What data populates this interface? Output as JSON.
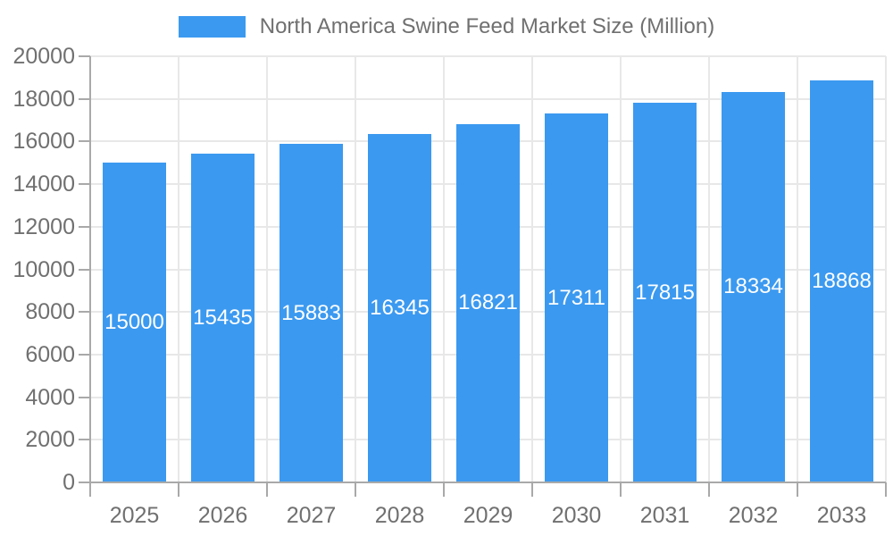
{
  "legend": {
    "label": "North America Swine Feed Market Size (Million)"
  },
  "colors": {
    "bar": "#3B99F0",
    "grid": "#e8e8e8",
    "axis": "#a9a9a9",
    "text": "#707070",
    "bar_label": "#ffffff",
    "background": "#ffffff"
  },
  "chart_data": {
    "type": "bar",
    "title": "North America Swine Feed Market Size (Million)",
    "series_name": "North America Swine Feed Market Size (Million)",
    "categories": [
      "2025",
      "2026",
      "2027",
      "2028",
      "2029",
      "2030",
      "2031",
      "2032",
      "2033"
    ],
    "values": [
      15000,
      15435,
      15883,
      16345,
      16821,
      17311,
      17815,
      18334,
      18868
    ],
    "xlabel": "",
    "ylabel": "",
    "ylim": [
      0,
      20000
    ],
    "ytick_step": 2000,
    "yticks": [
      0,
      2000,
      4000,
      6000,
      8000,
      10000,
      12000,
      14000,
      16000,
      18000,
      20000
    ],
    "grid": true,
    "legend_position": "top",
    "value_labels": "inside-center"
  }
}
